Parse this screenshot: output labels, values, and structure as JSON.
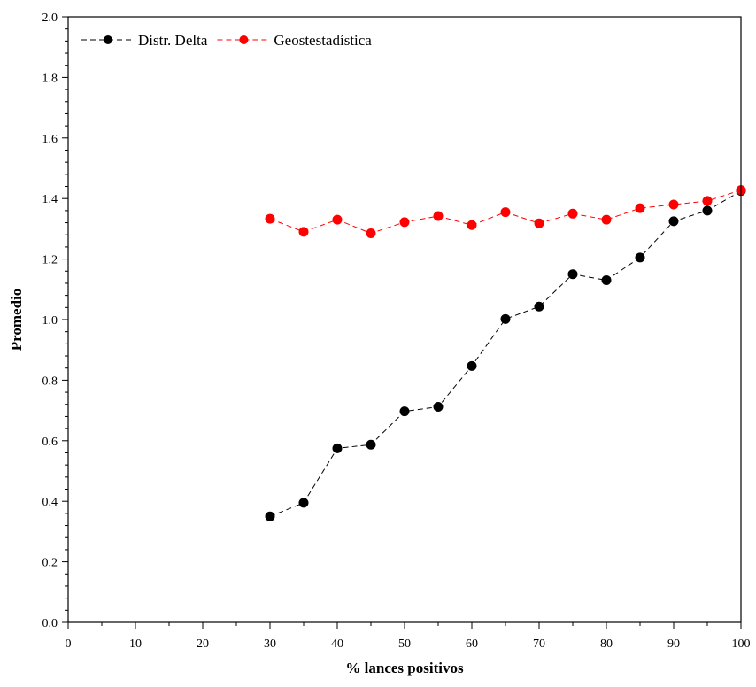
{
  "chart_data": {
    "type": "line",
    "xlabel": "% lances positivos",
    "ylabel": "Promedio",
    "xlim": [
      0,
      100
    ],
    "ylim": [
      0,
      2.0
    ],
    "x_ticks": [
      "0",
      "10",
      "20",
      "30",
      "40",
      "50",
      "60",
      "70",
      "80",
      "90",
      "100"
    ],
    "y_ticks": [
      "0.0",
      "0.2",
      "0.4",
      "0.6",
      "0.8",
      "1.0",
      "1.2",
      "1.4",
      "1.6",
      "1.8",
      "2.0"
    ],
    "grid": false,
    "legend_position": "top-left",
    "x": [
      30,
      35,
      40,
      45,
      50,
      55,
      60,
      65,
      70,
      75,
      80,
      85,
      90,
      95,
      100
    ],
    "series": [
      {
        "name": "Distr. Delta",
        "color": "#000000",
        "line_style": "dashed",
        "marker": "circle",
        "values": [
          0.35,
          0.395,
          0.575,
          0.587,
          0.697,
          0.712,
          0.847,
          1.002,
          1.043,
          1.15,
          1.13,
          1.205,
          1.325,
          1.36,
          1.425
        ]
      },
      {
        "name": "Geostestadística",
        "color": "#ff0000",
        "line_style": "dashed",
        "marker": "circle",
        "values": [
          1.333,
          1.29,
          1.33,
          1.285,
          1.322,
          1.342,
          1.312,
          1.355,
          1.318,
          1.35,
          1.33,
          1.368,
          1.38,
          1.392,
          1.428
        ]
      }
    ]
  }
}
